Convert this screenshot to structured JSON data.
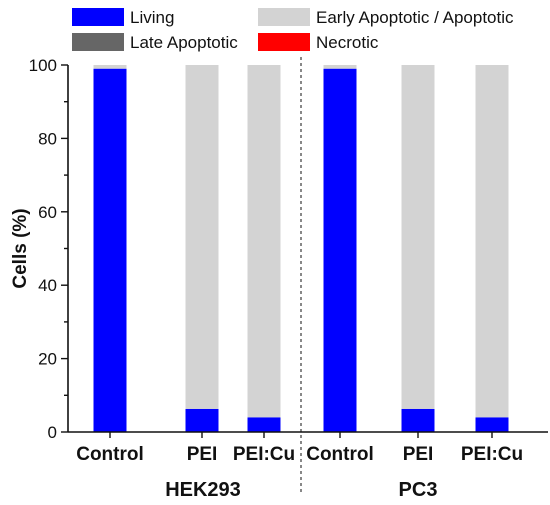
{
  "chart_data": {
    "type": "bar",
    "stacked": true,
    "categories": [
      "Control",
      "PEI",
      "PEI:Cu",
      "Control",
      "PEI",
      "PEI:Cu"
    ],
    "groups": [
      {
        "label": "HEK293",
        "categories": [
          "Control",
          "PEI",
          "PEI:Cu"
        ]
      },
      {
        "label": "PC3",
        "categories": [
          "Control",
          "PEI",
          "PEI:Cu"
        ]
      }
    ],
    "series": [
      {
        "name": "Living",
        "color": "#0000ff",
        "values": [
          99,
          6.3,
          4,
          99,
          6.3,
          4
        ]
      },
      {
        "name": "Early Apoptotic / Apoptotic",
        "color": "#d3d3d3",
        "values": [
          1,
          93.7,
          96,
          1,
          93.7,
          96
        ]
      },
      {
        "name": "Late Apoptotic",
        "color": "#666666",
        "values": [
          0,
          0,
          0,
          0,
          0,
          0
        ]
      },
      {
        "name": "Necrotic",
        "color": "#ff0000",
        "values": [
          0,
          0,
          0,
          0,
          0,
          0
        ]
      }
    ],
    "legend_order": [
      "Living",
      "Early Apoptotic / Apoptotic",
      "Late Apoptotic",
      "Necrotic"
    ],
    "legend_position": "top",
    "ylabel": "Cells (%)",
    "xlabel": "",
    "ylim": [
      0,
      100
    ],
    "yticks": [
      0,
      20,
      40,
      60,
      80,
      100
    ],
    "grid": false,
    "group_separator": "dashed"
  }
}
